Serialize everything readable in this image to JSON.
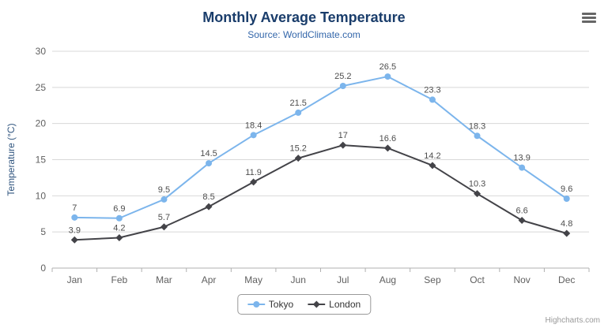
{
  "chart_data": {
    "type": "line",
    "title": "Monthly Average Temperature",
    "subtitle": "Source: WorldClimate.com",
    "categories": [
      "Jan",
      "Feb",
      "Mar",
      "Apr",
      "May",
      "Jun",
      "Jul",
      "Aug",
      "Sep",
      "Oct",
      "Nov",
      "Dec"
    ],
    "series": [
      {
        "name": "Tokyo",
        "color": "#7cb5ec",
        "marker": "circle",
        "values": [
          7,
          6.9,
          9.5,
          14.5,
          18.4,
          21.5,
          25.2,
          26.5,
          23.3,
          18.3,
          13.9,
          9.6
        ]
      },
      {
        "name": "London",
        "color": "#434348",
        "marker": "diamond",
        "values": [
          3.9,
          4.2,
          5.7,
          8.5,
          11.9,
          15.2,
          17,
          16.6,
          14.2,
          10.3,
          6.6,
          4.8
        ]
      }
    ],
    "xlabel": "",
    "ylabel": "Temperature (°C)",
    "ylim": [
      0,
      30
    ],
    "ytick_step": 5,
    "grid": true,
    "legend_position": "bottom",
    "data_labels": true
  },
  "colors": {
    "title": "#1a3d6b",
    "subtitle": "#3366aa",
    "axis_label": "#606060",
    "axis_title": "#30557f",
    "gridline": "#d8d8d8",
    "axis_line": "#b0b0b0",
    "data_label": "#4d4d4d"
  },
  "credits": {
    "label": "Highcharts.com"
  },
  "menu": {
    "icon": "hamburger"
  }
}
